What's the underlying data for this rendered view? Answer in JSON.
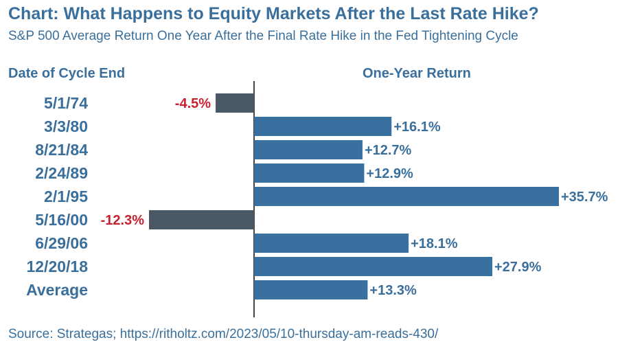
{
  "header": {
    "title": "Chart: What Happens to Equity Markets After the Last Rate Hike?",
    "subtitle": "S&P 500 Average Return One Year After the Final Rate Hike in the Fed Tightening Cycle"
  },
  "columns": {
    "left": "Date of Cycle End",
    "right": "One-Year Return"
  },
  "footer": {
    "source": "Source: Strategas; https://ritholtz.com/2023/05/10-thursday-am-reads-430/"
  },
  "colors": {
    "positive_bar": "#38719f",
    "negative_bar": "#4a5866",
    "positive_label": "#3a6f9c",
    "negative_label": "#c8202f",
    "axis": "#444444"
  },
  "chart_data": {
    "type": "bar",
    "orientation": "horizontal",
    "categories": [
      "5/1/74",
      "3/3/80",
      "8/21/84",
      "2/24/89",
      "2/1/95",
      "5/16/00",
      "6/29/06",
      "12/20/18",
      "Average"
    ],
    "values": [
      -4.5,
      16.1,
      12.7,
      12.9,
      35.7,
      -12.3,
      18.1,
      27.9,
      13.3
    ],
    "data_labels": [
      "-4.5%",
      "+16.1%",
      "+12.7%",
      "+12.9%",
      "+35.7%",
      "-12.3%",
      "+18.1%",
      "+27.9%",
      "+13.3%"
    ],
    "xlim": [
      -12.3,
      35.7
    ],
    "grid": false,
    "legend": "none"
  }
}
